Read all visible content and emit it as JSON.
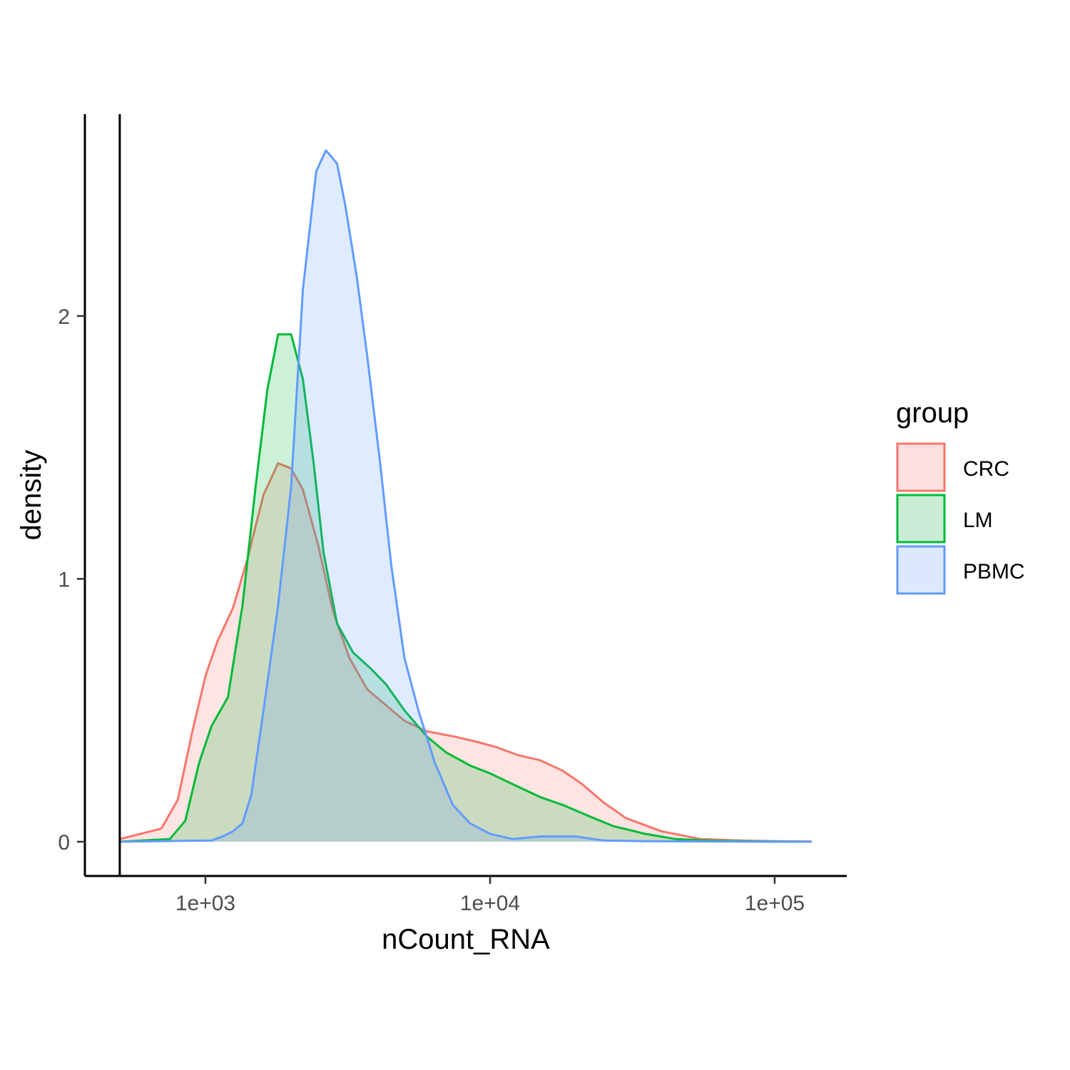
{
  "chart_data": {
    "type": "area",
    "xlabel": "nCount_RNA",
    "ylabel": "density",
    "x_scale": "log10",
    "xlim": [
      500,
      140000
    ],
    "ylim": [
      -0.13,
      2.75
    ],
    "x_ticks": [
      1000,
      10000,
      100000
    ],
    "x_tick_labels": [
      "1e+03",
      "1e+04",
      "1e+05"
    ],
    "y_ticks": [
      0,
      1,
      2
    ],
    "y_tick_labels": [
      "0",
      "1",
      "2"
    ],
    "grid": false,
    "vline_x": 500,
    "legend": {
      "title": "group",
      "position": "right",
      "entries": [
        "CRC",
        "LM",
        "PBMC"
      ]
    },
    "series": [
      {
        "name": "CRC",
        "color": "#F8766D",
        "fill": "#FDE0DF",
        "x": [
          500,
          700,
          800,
          900,
          1000,
          1100,
          1250,
          1400,
          1600,
          1800,
          2000,
          2200,
          2500,
          2800,
          3200,
          3700,
          4300,
          5000,
          6000,
          7500,
          9000,
          10500,
          12500,
          15000,
          18000,
          21000,
          25000,
          30000,
          40000,
          55000,
          75000,
          100000,
          135000
        ],
        "y": [
          0.01,
          0.05,
          0.16,
          0.42,
          0.63,
          0.76,
          0.89,
          1.07,
          1.32,
          1.44,
          1.42,
          1.34,
          1.12,
          0.88,
          0.7,
          0.58,
          0.52,
          0.46,
          0.42,
          0.4,
          0.38,
          0.36,
          0.33,
          0.31,
          0.27,
          0.22,
          0.15,
          0.09,
          0.04,
          0.01,
          0.005,
          0.002,
          0.001
        ]
      },
      {
        "name": "LM",
        "color": "#00BA38",
        "fill": "#C9EDD4",
        "x": [
          500,
          750,
          850,
          950,
          1050,
          1200,
          1350,
          1500,
          1650,
          1800,
          2000,
          2200,
          2400,
          2600,
          2900,
          3300,
          3800,
          4300,
          5000,
          6000,
          7000,
          8500,
          10000,
          12500,
          15000,
          18000,
          22000,
          27000,
          35000,
          45000,
          60000,
          80000,
          100000,
          135000
        ],
        "y": [
          0.0,
          0.01,
          0.08,
          0.3,
          0.44,
          0.55,
          0.9,
          1.35,
          1.72,
          1.93,
          1.93,
          1.76,
          1.44,
          1.1,
          0.83,
          0.72,
          0.66,
          0.6,
          0.5,
          0.4,
          0.34,
          0.29,
          0.26,
          0.21,
          0.17,
          0.14,
          0.1,
          0.06,
          0.03,
          0.01,
          0.004,
          0.002,
          0.001,
          0.0
        ]
      },
      {
        "name": "PBMC",
        "color": "#619CFF",
        "fill": "#DBE8FD",
        "x": [
          500,
          1050,
          1150,
          1250,
          1350,
          1450,
          1600,
          1800,
          2000,
          2200,
          2450,
          2650,
          2750,
          2900,
          3100,
          3400,
          3700,
          4100,
          4500,
          5000,
          5600,
          6400,
          7400,
          8500,
          10000,
          12000,
          15000,
          20000,
          25000,
          35000,
          60000,
          100000,
          135000
        ],
        "y": [
          0.0,
          0.005,
          0.02,
          0.04,
          0.07,
          0.18,
          0.5,
          0.9,
          1.35,
          2.1,
          2.55,
          2.63,
          2.61,
          2.58,
          2.42,
          2.15,
          1.85,
          1.45,
          1.05,
          0.7,
          0.5,
          0.3,
          0.14,
          0.07,
          0.03,
          0.01,
          0.02,
          0.02,
          0.005,
          0.002,
          0.001,
          0.0,
          0.0
        ]
      }
    ]
  }
}
